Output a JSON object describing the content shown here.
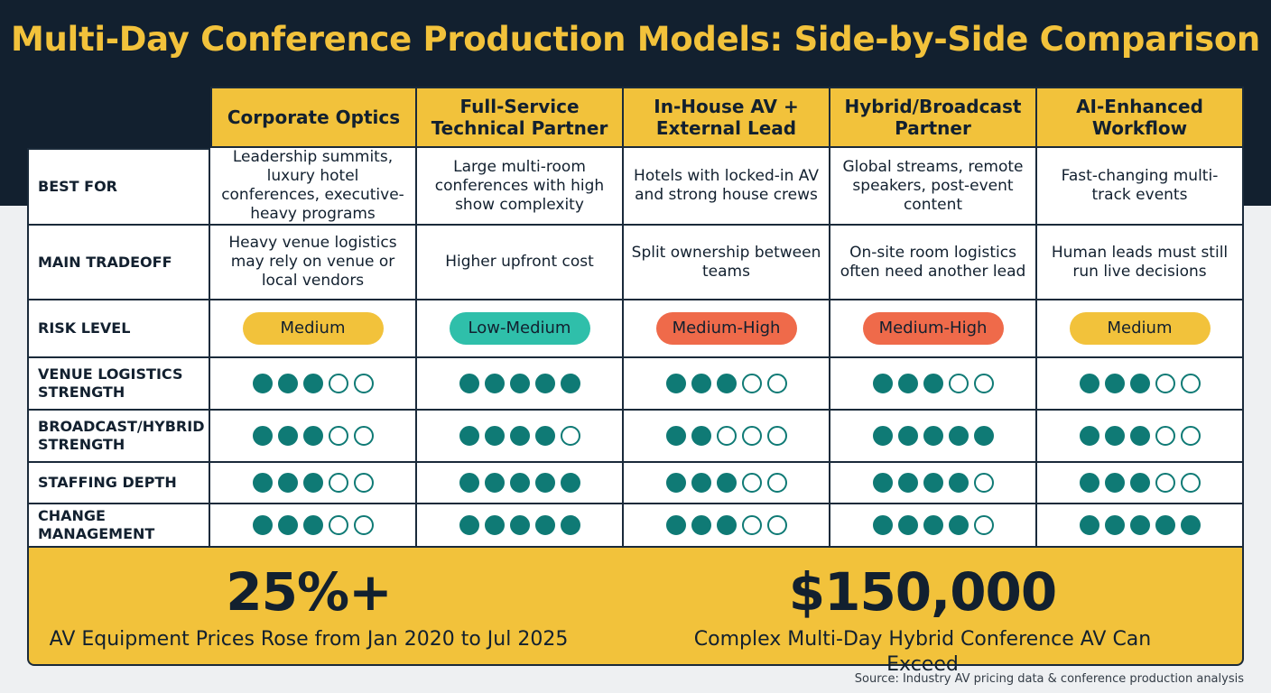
{
  "title": "Multi-Day Conference Production Models: Side-by-Side Comparison",
  "colors": {
    "navy": "#12202f",
    "yellow": "#f2c23b",
    "teal": "#0f7a75",
    "pill_medium": "#f2c23b",
    "pill_low_medium": "#2fbfaa",
    "pill_medium_high": "#ef6a4a"
  },
  "columns": [
    "Corporate Optics",
    "Full-Service Technical Partner",
    "In-House AV + External Lead",
    "Hybrid/Broadcast Partner",
    "AI-Enhanced Workflow"
  ],
  "rows": {
    "best_for": {
      "label": "BEST FOR",
      "values": [
        "Leadership summits, luxury hotel conferences, executive-heavy programs",
        "Large multi-room conferences with high show complexity",
        "Hotels with locked-in AV and strong house crews",
        "Global streams, remote speakers, post-event content",
        "Fast-changing multi-track events"
      ]
    },
    "main_tradeoff": {
      "label": "MAIN TRADEOFF",
      "values": [
        "Heavy venue logistics may rely on venue or local vendors",
        "Higher upfront cost",
        "Split ownership between teams",
        "On-site room logistics often need another lead",
        "Human leads must still run live decisions"
      ]
    },
    "risk_level": {
      "label": "RISK LEVEL",
      "values": [
        "Medium",
        "Low-Medium",
        "Medium-High",
        "Medium-High",
        "Medium"
      ]
    }
  },
  "ratings": {
    "max": 5,
    "venue_logistics": {
      "label": "VENUE LOGISTICS STRENGTH",
      "values": [
        3,
        5,
        3,
        3,
        3
      ]
    },
    "broadcast_hybrid": {
      "label": "BROADCAST/HYBRID STRENGTH",
      "values": [
        3,
        4,
        2,
        5,
        3
      ]
    },
    "staffing_depth": {
      "label": "STAFFING DEPTH",
      "values": [
        3,
        5,
        3,
        4,
        3
      ]
    },
    "change_management": {
      "label": "CHANGE MANAGEMENT",
      "values": [
        3,
        5,
        3,
        4,
        5
      ]
    }
  },
  "stats": [
    {
      "value": "25%+",
      "label": "AV Equipment Prices Rose from Jan 2020 to Jul 2025"
    },
    {
      "value": "$150,000",
      "label": "Complex Multi-Day Hybrid Conference AV Can Exceed"
    }
  ],
  "source": "Source: Industry AV pricing data & conference production analysis"
}
